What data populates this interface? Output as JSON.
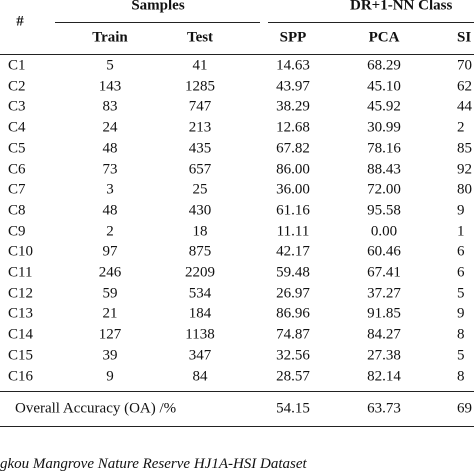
{
  "table": {
    "group_header": [
      "#",
      "Samples",
      "DR+1-NN Class"
    ],
    "sub_header": [
      "Train",
      "Test",
      "SPP",
      "PCA",
      "SI"
    ],
    "rows": [
      [
        "C1",
        "5",
        "41",
        "14.63",
        "68.29",
        "70"
      ],
      [
        "C2",
        "143",
        "1285",
        "43.97",
        "45.10",
        "62"
      ],
      [
        "C3",
        "83",
        "747",
        "38.29",
        "45.92",
        "44"
      ],
      [
        "C4",
        "24",
        "213",
        "12.68",
        "30.99",
        "2"
      ],
      [
        "C5",
        "48",
        "435",
        "67.82",
        "78.16",
        "85"
      ],
      [
        "C6",
        "73",
        "657",
        "86.00",
        "88.43",
        "92"
      ],
      [
        "C7",
        "3",
        "25",
        "36.00",
        "72.00",
        "80"
      ],
      [
        "C8",
        "48",
        "430",
        "61.16",
        "95.58",
        "9"
      ],
      [
        "C9",
        "2",
        "18",
        "11.11",
        "0.00",
        "1"
      ],
      [
        "C10",
        "97",
        "875",
        "42.17",
        "60.46",
        "6"
      ],
      [
        "C11",
        "246",
        "2209",
        "59.48",
        "67.41",
        "6"
      ],
      [
        "C12",
        "59",
        "534",
        "26.97",
        "37.27",
        "5"
      ],
      [
        "C13",
        "21",
        "184",
        "86.96",
        "91.85",
        "9"
      ],
      [
        "C14",
        "127",
        "1138",
        "74.87",
        "84.27",
        "8"
      ],
      [
        "C15",
        "39",
        "347",
        "32.56",
        "27.38",
        "5"
      ],
      [
        "C16",
        "9",
        "84",
        "28.57",
        "82.14",
        "8"
      ]
    ],
    "footer": [
      "Overall Accuracy (OA) /%",
      "54.15",
      "63.73",
      "69"
    ]
  },
  "caption": "gkou Mangrove Nature Reserve HJ1A-HSI Dataset"
}
